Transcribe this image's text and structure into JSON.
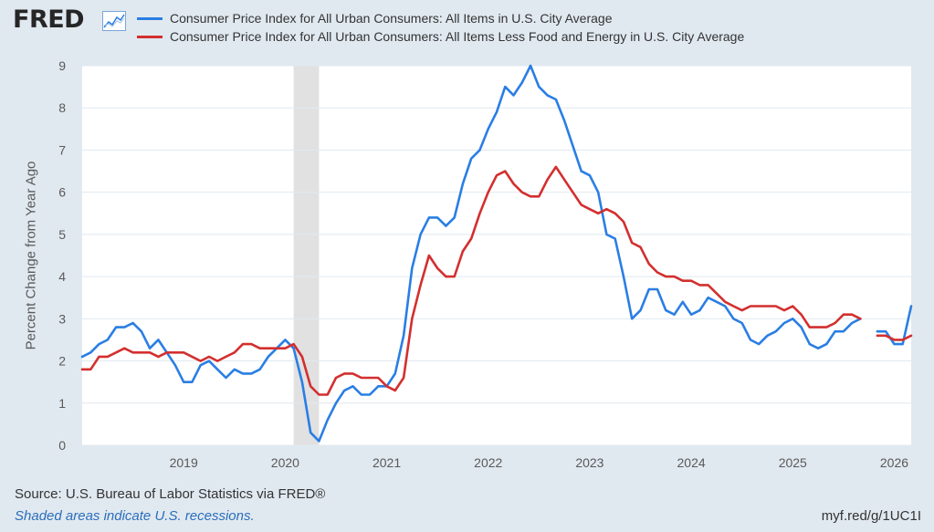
{
  "header": {
    "logo_text": "FRED",
    "logo_icon": "line-graph-icon",
    "series_blue_label": "Consumer Price Index for All Urban Consumers: All Items in U.S. City Average",
    "series_red_label": "Consumer Price Index for All Urban Consumers: All Items Less Food and Energy in U.S. City Average"
  },
  "footer": {
    "source": "Source: U.S. Bureau of Labor Statistics via FRED®",
    "note": "Shaded areas indicate U.S. recessions.",
    "shortlink": "myf.red/g/1UC1I"
  },
  "colors": {
    "background": "#e1e9f0",
    "plot_area": "#ffffff",
    "grid": "#e1e9f0",
    "recession": "#e1e1e1",
    "blue": "#2a7ee4",
    "red": "#d32f2f",
    "note": "#2a6ebb"
  },
  "chart_data": {
    "type": "line",
    "title": "",
    "xlabel": "",
    "ylabel": "Percent Change from Year Ago",
    "ylim": [
      0,
      9
    ],
    "yticks": [
      "0",
      "1",
      "2",
      "3",
      "4",
      "5",
      "6",
      "7",
      "8",
      "9"
    ],
    "xlim": [
      "2018-01",
      "2026-01"
    ],
    "xticks": [
      "2019",
      "2020",
      "2021",
      "2022",
      "2023",
      "2024",
      "2025",
      "2026"
    ],
    "grid": true,
    "legend_position": "top",
    "recessions": [
      {
        "start": "2020-02",
        "end": "2020-04"
      }
    ],
    "series": [
      {
        "name": "Consumer Price Index for All Urban Consumers: All Items in U.S. City Average",
        "color": "#2a7ee4",
        "points": [
          [
            "2018-01",
            2.1
          ],
          [
            "2018-02",
            2.2
          ],
          [
            "2018-03",
            2.4
          ],
          [
            "2018-04",
            2.5
          ],
          [
            "2018-05",
            2.8
          ],
          [
            "2018-06",
            2.8
          ],
          [
            "2018-07",
            2.9
          ],
          [
            "2018-08",
            2.7
          ],
          [
            "2018-09",
            2.3
          ],
          [
            "2018-10",
            2.5
          ],
          [
            "2018-11",
            2.2
          ],
          [
            "2018-12",
            1.9
          ],
          [
            "2019-01",
            1.5
          ],
          [
            "2019-02",
            1.5
          ],
          [
            "2019-03",
            1.9
          ],
          [
            "2019-04",
            2.0
          ],
          [
            "2019-05",
            1.8
          ],
          [
            "2019-06",
            1.6
          ],
          [
            "2019-07",
            1.8
          ],
          [
            "2019-08",
            1.7
          ],
          [
            "2019-09",
            1.7
          ],
          [
            "2019-10",
            1.8
          ],
          [
            "2019-11",
            2.1
          ],
          [
            "2019-12",
            2.3
          ],
          [
            "2020-01",
            2.5
          ],
          [
            "2020-02",
            2.3
          ],
          [
            "2020-03",
            1.5
          ],
          [
            "2020-04",
            0.3
          ],
          [
            "2020-05",
            0.1
          ],
          [
            "2020-06",
            0.6
          ],
          [
            "2020-07",
            1.0
          ],
          [
            "2020-08",
            1.3
          ],
          [
            "2020-09",
            1.4
          ],
          [
            "2020-10",
            1.2
          ],
          [
            "2020-11",
            1.2
          ],
          [
            "2020-12",
            1.4
          ],
          [
            "2021-01",
            1.4
          ],
          [
            "2021-02",
            1.7
          ],
          [
            "2021-03",
            2.6
          ],
          [
            "2021-04",
            4.2
          ],
          [
            "2021-05",
            5.0
          ],
          [
            "2021-06",
            5.4
          ],
          [
            "2021-07",
            5.4
          ],
          [
            "2021-08",
            5.2
          ],
          [
            "2021-09",
            5.4
          ],
          [
            "2021-10",
            6.2
          ],
          [
            "2021-11",
            6.8
          ],
          [
            "2021-12",
            7.0
          ],
          [
            "2022-01",
            7.5
          ],
          [
            "2022-02",
            7.9
          ],
          [
            "2022-03",
            8.5
          ],
          [
            "2022-04",
            8.3
          ],
          [
            "2022-05",
            8.6
          ],
          [
            "2022-06",
            9.0
          ],
          [
            "2022-07",
            8.5
          ],
          [
            "2022-08",
            8.3
          ],
          [
            "2022-09",
            8.2
          ],
          [
            "2022-10",
            7.7
          ],
          [
            "2022-11",
            7.1
          ],
          [
            "2022-12",
            6.5
          ],
          [
            "2023-01",
            6.4
          ],
          [
            "2023-02",
            6.0
          ],
          [
            "2023-03",
            5.0
          ],
          [
            "2023-04",
            4.9
          ],
          [
            "2023-05",
            4.0
          ],
          [
            "2023-06",
            3.0
          ],
          [
            "2023-07",
            3.2
          ],
          [
            "2023-08",
            3.7
          ],
          [
            "2023-09",
            3.7
          ],
          [
            "2023-10",
            3.2
          ],
          [
            "2023-11",
            3.1
          ],
          [
            "2023-12",
            3.4
          ],
          [
            "2024-01",
            3.1
          ],
          [
            "2024-02",
            3.2
          ],
          [
            "2024-03",
            3.5
          ],
          [
            "2024-04",
            3.4
          ],
          [
            "2024-05",
            3.3
          ],
          [
            "2024-06",
            3.0
          ],
          [
            "2024-07",
            2.9
          ],
          [
            "2024-08",
            2.5
          ],
          [
            "2024-09",
            2.4
          ],
          [
            "2024-10",
            2.6
          ],
          [
            "2024-11",
            2.7
          ],
          [
            "2024-12",
            2.9
          ],
          [
            "2025-01",
            3.0
          ],
          [
            "2025-02",
            2.8
          ],
          [
            "2025-03",
            2.4
          ],
          [
            "2025-04",
            2.3
          ],
          [
            "2025-05",
            2.4
          ],
          [
            "2025-06",
            2.7
          ],
          [
            "2025-07",
            2.7
          ],
          [
            "2025-08",
            2.9
          ],
          [
            "2025-09",
            3.0
          ],
          null,
          [
            "2025-11",
            2.7
          ],
          [
            "2025-12",
            2.7
          ],
          [
            "2026-01",
            2.4
          ],
          [
            "2026-02",
            2.4
          ],
          [
            "2026-03",
            3.3
          ]
        ]
      },
      {
        "name": "Consumer Price Index for All Urban Consumers: All Items Less Food and Energy in U.S. City Average",
        "color": "#d32f2f",
        "points": [
          [
            "2018-01",
            1.8
          ],
          [
            "2018-02",
            1.8
          ],
          [
            "2018-03",
            2.1
          ],
          [
            "2018-04",
            2.1
          ],
          [
            "2018-05",
            2.2
          ],
          [
            "2018-06",
            2.3
          ],
          [
            "2018-07",
            2.2
          ],
          [
            "2018-08",
            2.2
          ],
          [
            "2018-09",
            2.2
          ],
          [
            "2018-10",
            2.1
          ],
          [
            "2018-11",
            2.2
          ],
          [
            "2018-12",
            2.2
          ],
          [
            "2019-01",
            2.2
          ],
          [
            "2019-02",
            2.1
          ],
          [
            "2019-03",
            2.0
          ],
          [
            "2019-04",
            2.1
          ],
          [
            "2019-05",
            2.0
          ],
          [
            "2019-06",
            2.1
          ],
          [
            "2019-07",
            2.2
          ],
          [
            "2019-08",
            2.4
          ],
          [
            "2019-09",
            2.4
          ],
          [
            "2019-10",
            2.3
          ],
          [
            "2019-11",
            2.3
          ],
          [
            "2019-12",
            2.3
          ],
          [
            "2020-01",
            2.3
          ],
          [
            "2020-02",
            2.4
          ],
          [
            "2020-03",
            2.1
          ],
          [
            "2020-04",
            1.4
          ],
          [
            "2020-05",
            1.2
          ],
          [
            "2020-06",
            1.2
          ],
          [
            "2020-07",
            1.6
          ],
          [
            "2020-08",
            1.7
          ],
          [
            "2020-09",
            1.7
          ],
          [
            "2020-10",
            1.6
          ],
          [
            "2020-11",
            1.6
          ],
          [
            "2020-12",
            1.6
          ],
          [
            "2021-01",
            1.4
          ],
          [
            "2021-02",
            1.3
          ],
          [
            "2021-03",
            1.6
          ],
          [
            "2021-04",
            3.0
          ],
          [
            "2021-05",
            3.8
          ],
          [
            "2021-06",
            4.5
          ],
          [
            "2021-07",
            4.2
          ],
          [
            "2021-08",
            4.0
          ],
          [
            "2021-09",
            4.0
          ],
          [
            "2021-10",
            4.6
          ],
          [
            "2021-11",
            4.9
          ],
          [
            "2021-12",
            5.5
          ],
          [
            "2022-01",
            6.0
          ],
          [
            "2022-02",
            6.4
          ],
          [
            "2022-03",
            6.5
          ],
          [
            "2022-04",
            6.2
          ],
          [
            "2022-05",
            6.0
          ],
          [
            "2022-06",
            5.9
          ],
          [
            "2022-07",
            5.9
          ],
          [
            "2022-08",
            6.3
          ],
          [
            "2022-09",
            6.6
          ],
          [
            "2022-10",
            6.3
          ],
          [
            "2022-11",
            6.0
          ],
          [
            "2022-12",
            5.7
          ],
          [
            "2023-01",
            5.6
          ],
          [
            "2023-02",
            5.5
          ],
          [
            "2023-03",
            5.6
          ],
          [
            "2023-04",
            5.5
          ],
          [
            "2023-05",
            5.3
          ],
          [
            "2023-06",
            4.8
          ],
          [
            "2023-07",
            4.7
          ],
          [
            "2023-08",
            4.3
          ],
          [
            "2023-09",
            4.1
          ],
          [
            "2023-10",
            4.0
          ],
          [
            "2023-11",
            4.0
          ],
          [
            "2023-12",
            3.9
          ],
          [
            "2024-01",
            3.9
          ],
          [
            "2024-02",
            3.8
          ],
          [
            "2024-03",
            3.8
          ],
          [
            "2024-04",
            3.6
          ],
          [
            "2024-05",
            3.4
          ],
          [
            "2024-06",
            3.3
          ],
          [
            "2024-07",
            3.2
          ],
          [
            "2024-08",
            3.3
          ],
          [
            "2024-09",
            3.3
          ],
          [
            "2024-10",
            3.3
          ],
          [
            "2024-11",
            3.3
          ],
          [
            "2024-12",
            3.2
          ],
          [
            "2025-01",
            3.3
          ],
          [
            "2025-02",
            3.1
          ],
          [
            "2025-03",
            2.8
          ],
          [
            "2025-04",
            2.8
          ],
          [
            "2025-05",
            2.8
          ],
          [
            "2025-06",
            2.9
          ],
          [
            "2025-07",
            3.1
          ],
          [
            "2025-08",
            3.1
          ],
          [
            "2025-09",
            3.0
          ],
          null,
          [
            "2025-11",
            2.6
          ],
          [
            "2025-12",
            2.6
          ],
          [
            "2026-01",
            2.5
          ],
          [
            "2026-02",
            2.5
          ],
          [
            "2026-03",
            2.6
          ]
        ]
      }
    ]
  }
}
